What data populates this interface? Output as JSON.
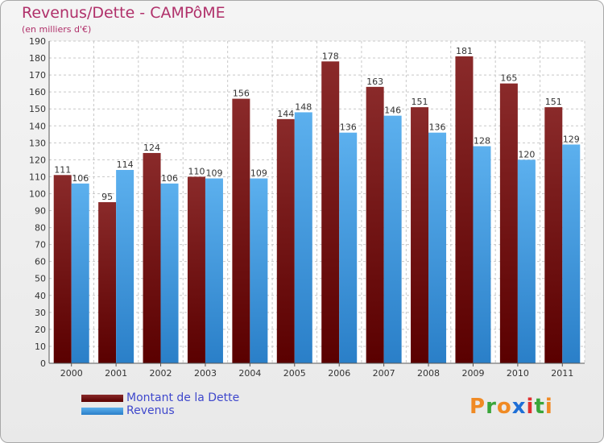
{
  "chart_data": {
    "type": "bar",
    "title": "Revenus/Dette - CAMPôME",
    "subtitle": "(en milliers d'€)",
    "categories": [
      "2000",
      "2001",
      "2002",
      "2003",
      "2004",
      "2005",
      "2006",
      "2007",
      "2008",
      "2009",
      "2010",
      "2011"
    ],
    "series": [
      {
        "name": "Montant de la Dette",
        "color": "#7a1616",
        "values": [
          111,
          95,
          124,
          110,
          156,
          144,
          178,
          163,
          151,
          181,
          165,
          151
        ]
      },
      {
        "name": "Revenus",
        "color": "#4aa3e6",
        "values": [
          106,
          114,
          106,
          109,
          109,
          148,
          136,
          146,
          136,
          128,
          120,
          129
        ]
      }
    ],
    "ylim": [
      0,
      190
    ],
    "ytick_step": 10,
    "grid": true,
    "legend_position": "bottom-left"
  },
  "logo": {
    "letters": [
      "P",
      "r",
      "o",
      "x",
      "i",
      "t",
      "i"
    ],
    "colors": [
      "#f08a24",
      "#3aa53a",
      "#f08a24",
      "#1f6fd6",
      "#e03030",
      "#3aa53a",
      "#f08a24"
    ]
  }
}
